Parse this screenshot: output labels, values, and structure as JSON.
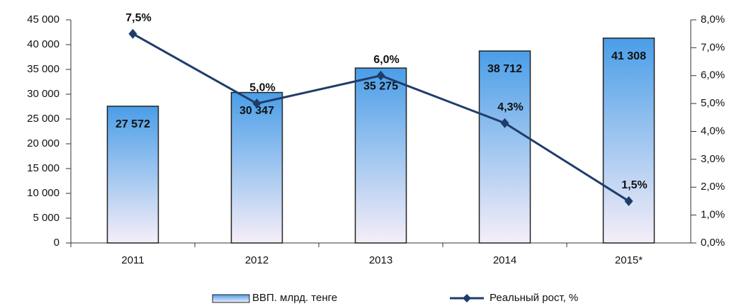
{
  "chart_data": {
    "type": "bar",
    "categories": [
      "2011",
      "2012",
      "2013",
      "2014",
      "2015*"
    ],
    "series": [
      {
        "name": "ВВП. млрд. тенге",
        "type": "bar",
        "color": "#4a9ee8",
        "values": [
          27572,
          30347,
          35275,
          38712,
          41308
        ],
        "value_labels": [
          "27 572",
          "30 347",
          "35 275",
          "38 712",
          "41 308"
        ]
      },
      {
        "name": "Реальный рост, %",
        "type": "line",
        "axis": "y2",
        "color": "#1f3d6b",
        "values": [
          7.5,
          5.0,
          6.0,
          4.3,
          1.5
        ],
        "value_labels": [
          "7,5%",
          "5,0%",
          "6,0%",
          "4,3%",
          "1,5%"
        ]
      }
    ],
    "ylim": [
      0,
      45000
    ],
    "yticks": [
      0,
      {
        "value": 5000,
        "label": "5 000"
      },
      {
        "value": 10000,
        "label": "10 000"
      },
      {
        "value": 15000,
        "label": "15 000"
      },
      {
        "value": 20000,
        "label": "20 000"
      },
      {
        "value": 25000,
        "label": "25 000"
      },
      {
        "value": 30000,
        "label": "30 000"
      },
      {
        "value": 35000,
        "label": "35 000"
      },
      {
        "value": 40000,
        "label": "40 000"
      },
      {
        "value": 45000,
        "label": "45 000"
      }
    ],
    "y2lim": [
      0,
      8
    ],
    "y2ticks": [
      {
        "value": 0,
        "label": "0,0%"
      },
      {
        "value": 1,
        "label": "1,0%"
      },
      {
        "value": 2,
        "label": "2,0%"
      },
      {
        "value": 3,
        "label": "3,0%"
      },
      {
        "value": 4,
        "label": "4,0%"
      },
      {
        "value": 5,
        "label": "5,0%"
      },
      {
        "value": 6,
        "label": "6,0%"
      },
      {
        "value": 7,
        "label": "7,0%"
      },
      {
        "value": 8,
        "label": "8,0%"
      }
    ],
    "legend": "bottom"
  }
}
